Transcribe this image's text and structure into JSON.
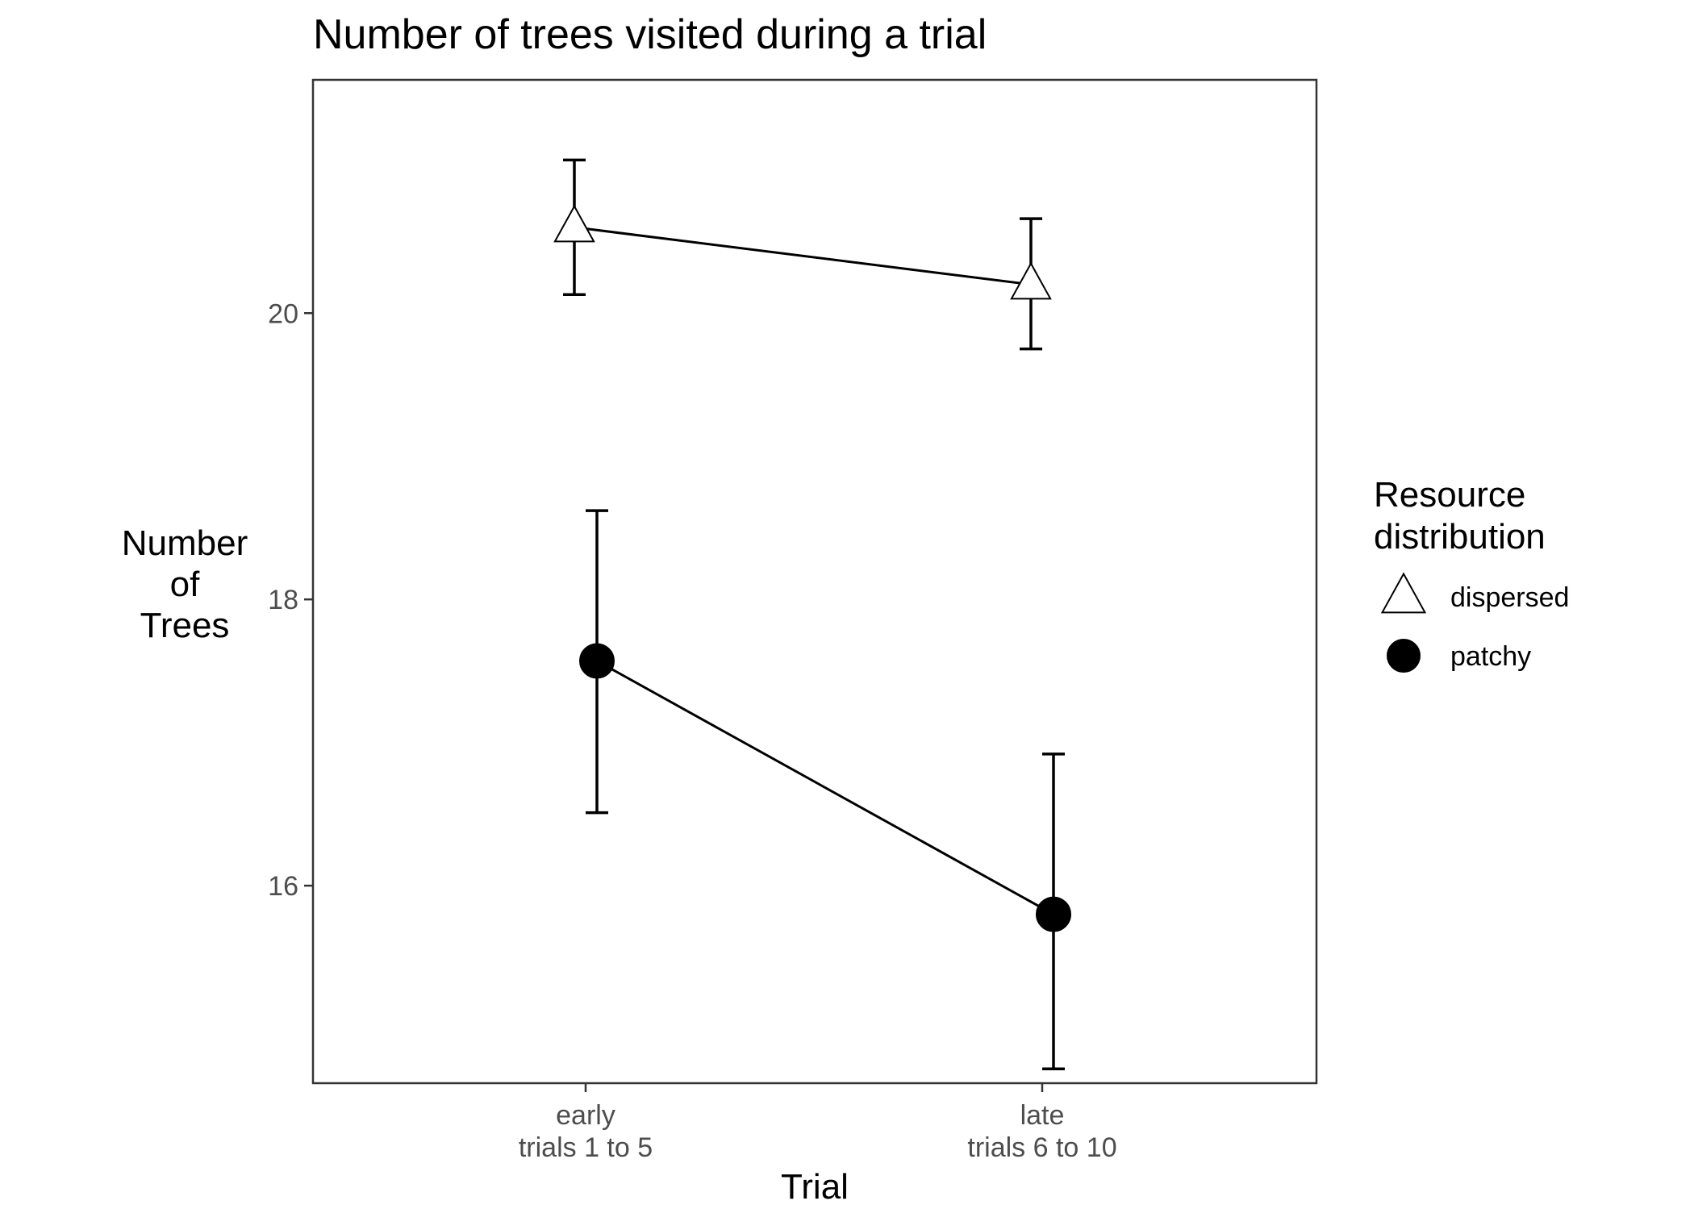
{
  "chart_data": {
    "type": "line",
    "title": "Number of trees visited during a trial",
    "xlabel": "Trial",
    "ylabel_lines": [
      "Number",
      "of",
      "Trees"
    ],
    "categories": [
      {
        "line1": "early",
        "line2": "trials 1 to 5"
      },
      {
        "line1": "late",
        "line2": "trials 6 to 10"
      }
    ],
    "y_ticks": [
      {
        "value": 16,
        "label": "16"
      },
      {
        "value": 18,
        "label": "18"
      },
      {
        "value": 20,
        "label": "20"
      }
    ],
    "ylim": [
      14.62,
      21.63
    ],
    "grid": false,
    "legend": {
      "title_lines": [
        "Resource",
        "distribution"
      ],
      "position": "right"
    },
    "series": [
      {
        "name": "dispersed",
        "marker": "open-triangle",
        "color": "#000000",
        "fill": "#ffffff",
        "points": [
          {
            "cat": 0,
            "y": 20.6,
            "lo": 20.13,
            "hi": 21.07
          },
          {
            "cat": 1,
            "y": 20.2,
            "lo": 19.75,
            "hi": 20.66
          }
        ]
      },
      {
        "name": "patchy",
        "marker": "filled-circle",
        "color": "#000000",
        "fill": "#000000",
        "points": [
          {
            "cat": 0,
            "y": 17.57,
            "lo": 16.51,
            "hi": 18.62
          },
          {
            "cat": 1,
            "y": 15.8,
            "lo": 14.72,
            "hi": 16.92
          }
        ]
      }
    ]
  }
}
